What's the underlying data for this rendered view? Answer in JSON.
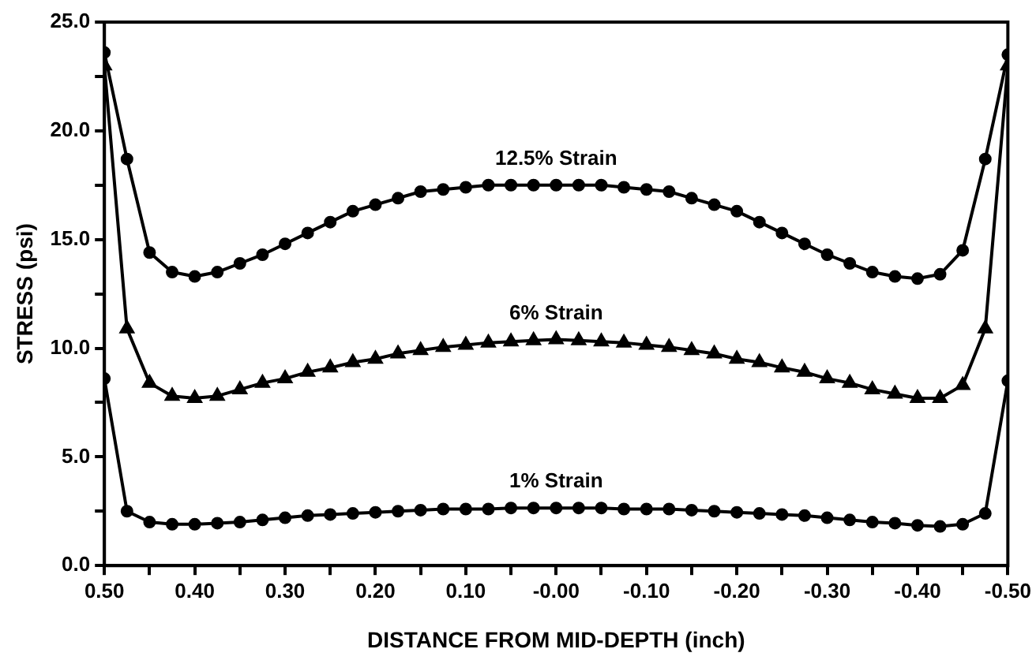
{
  "chart_data": {
    "type": "line",
    "xlabel": "DISTANCE FROM MID-DEPTH (inch)",
    "ylabel": "STRESS (psi)",
    "x": [
      0.5,
      0.475,
      0.45,
      0.425,
      0.4,
      0.375,
      0.35,
      0.325,
      0.3,
      0.275,
      0.25,
      0.225,
      0.2,
      0.175,
      0.15,
      0.125,
      0.1,
      0.075,
      0.05,
      0.025,
      0,
      -0.025,
      -0.05,
      -0.075,
      -0.1,
      -0.125,
      -0.15,
      -0.175,
      -0.2,
      -0.225,
      -0.25,
      -0.275,
      -0.3,
      -0.325,
      -0.35,
      -0.375,
      -0.4,
      -0.425,
      -0.45,
      -0.475,
      -0.5
    ],
    "series": [
      {
        "name": "12.5% Strain",
        "color": "#000000",
        "marker": "circle",
        "values": [
          23.6,
          18.7,
          14.4,
          13.5,
          13.3,
          13.5,
          13.9,
          14.3,
          14.8,
          15.3,
          15.8,
          16.3,
          16.6,
          16.9,
          17.2,
          17.3,
          17.4,
          17.5,
          17.5,
          17.5,
          17.5,
          17.5,
          17.5,
          17.4,
          17.3,
          17.2,
          16.9,
          16.6,
          16.3,
          15.8,
          15.3,
          14.8,
          14.3,
          13.9,
          13.5,
          13.3,
          13.2,
          13.4,
          14.5,
          18.7,
          23.5
        ]
      },
      {
        "name": "6% Strain",
        "color": "#000000",
        "marker": "triangle",
        "values": [
          23.0,
          10.9,
          8.4,
          7.8,
          7.7,
          7.8,
          8.1,
          8.4,
          8.6,
          8.9,
          9.1,
          9.35,
          9.5,
          9.75,
          9.9,
          10.05,
          10.15,
          10.25,
          10.3,
          10.35,
          10.4,
          10.35,
          10.3,
          10.25,
          10.15,
          10.05,
          9.9,
          9.75,
          9.5,
          9.35,
          9.1,
          8.9,
          8.6,
          8.4,
          8.1,
          7.9,
          7.7,
          7.7,
          8.3,
          10.9,
          23.0
        ]
      },
      {
        "name": "1% Strain",
        "color": "#000000",
        "marker": "circle",
        "values": [
          8.6,
          2.5,
          2.0,
          1.9,
          1.9,
          1.95,
          2.0,
          2.1,
          2.2,
          2.3,
          2.35,
          2.4,
          2.45,
          2.5,
          2.55,
          2.6,
          2.6,
          2.6,
          2.65,
          2.65,
          2.65,
          2.65,
          2.65,
          2.6,
          2.6,
          2.6,
          2.55,
          2.5,
          2.45,
          2.4,
          2.35,
          2.3,
          2.2,
          2.1,
          2.0,
          1.95,
          1.85,
          1.8,
          1.9,
          2.4,
          8.5
        ]
      }
    ],
    "xlim": [
      0.5,
      -0.5
    ],
    "xticks": [
      {
        "value": 0.5,
        "label": "0.50"
      },
      {
        "value": 0.45,
        "label": null
      },
      {
        "value": 0.4,
        "label": "0.40"
      },
      {
        "value": 0.35,
        "label": null
      },
      {
        "value": 0.3,
        "label": "0.30"
      },
      {
        "value": 0.25,
        "label": null
      },
      {
        "value": 0.2,
        "label": "0.20"
      },
      {
        "value": 0.15,
        "label": null
      },
      {
        "value": 0.1,
        "label": "0.10"
      },
      {
        "value": 0.05,
        "label": null
      },
      {
        "value": 0,
        "label": "-0.00"
      },
      {
        "value": -0.05,
        "label": null
      },
      {
        "value": -0.1,
        "label": "-0.10"
      },
      {
        "value": -0.15,
        "label": null
      },
      {
        "value": -0.2,
        "label": "-0.20"
      },
      {
        "value": -0.25,
        "label": null
      },
      {
        "value": -0.3,
        "label": "-0.30"
      },
      {
        "value": -0.35,
        "label": null
      },
      {
        "value": -0.4,
        "label": "-0.40"
      },
      {
        "value": -0.45,
        "label": null
      },
      {
        "value": -0.5,
        "label": "-0.50"
      }
    ],
    "ylim": [
      0,
      25
    ],
    "yticks": [
      {
        "value": 0,
        "label": "0.0"
      },
      {
        "value": 2.5,
        "label": null
      },
      {
        "value": 5,
        "label": "5.0"
      },
      {
        "value": 7.5,
        "label": null
      },
      {
        "value": 10,
        "label": "10.0"
      },
      {
        "value": 12.5,
        "label": null
      },
      {
        "value": 15,
        "label": "15.0"
      },
      {
        "value": 17.5,
        "label": null
      },
      {
        "value": 20,
        "label": "20.0"
      },
      {
        "value": 22.5,
        "label": null
      },
      {
        "value": 25,
        "label": "25.0"
      }
    ],
    "grid": false,
    "legend": false,
    "line_style": "solid"
  }
}
